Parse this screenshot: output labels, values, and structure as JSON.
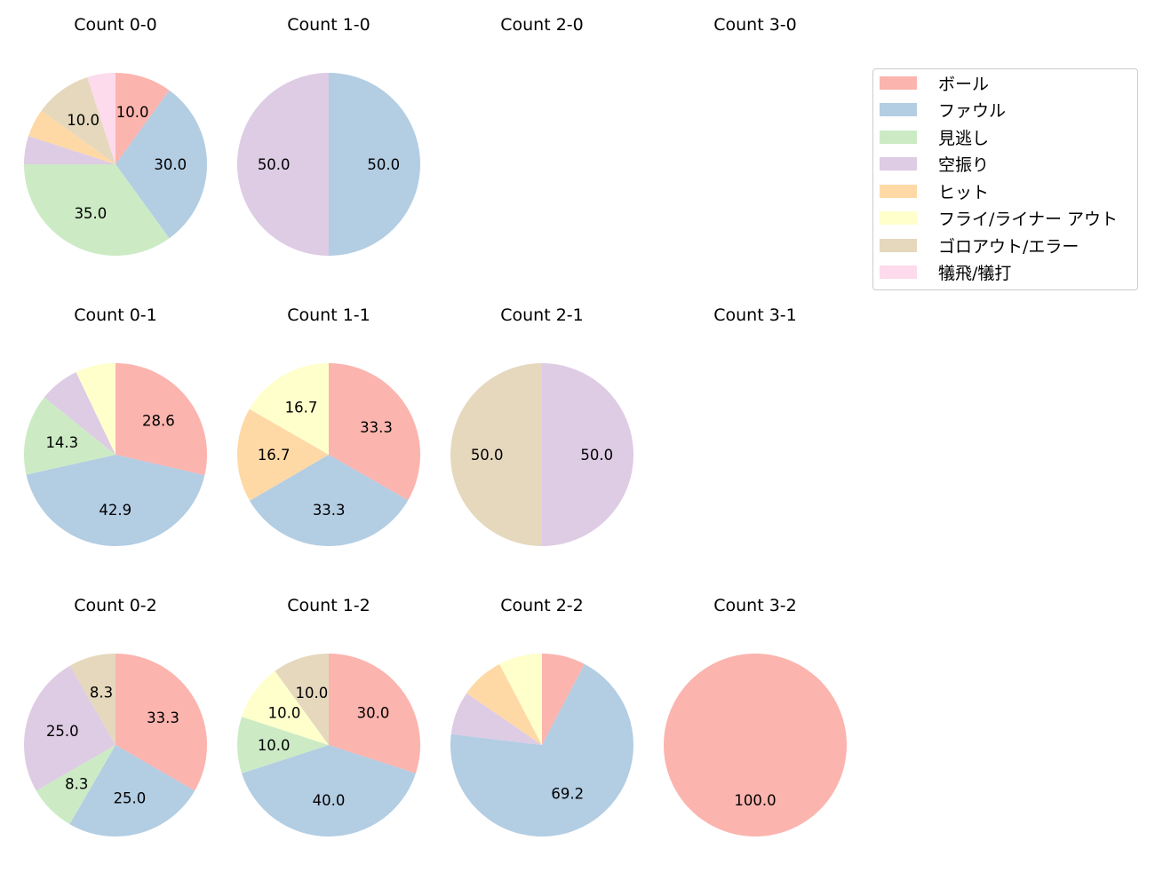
{
  "chart_data": {
    "type": "pie",
    "categories": [
      "ボール",
      "ファウル",
      "見逃し",
      "空振り",
      "ヒット",
      "フライ/ライナー アウト",
      "ゴロアウト/エラー",
      "犠飛/犠打"
    ],
    "colors": [
      "#fbb4ae",
      "#b3cde3",
      "#ccebc5",
      "#decbe4",
      "#fed9a6",
      "#ffffcc",
      "#e5d8bd",
      "#fddaec"
    ],
    "legend_position": "top-right",
    "charts": [
      {
        "title": "Count 0-0",
        "values": [
          10.0,
          30.0,
          35.0,
          5.0,
          5.0,
          0,
          10.0,
          5.0
        ]
      },
      {
        "title": "Count 1-0",
        "values": [
          0,
          50.0,
          0,
          50.0,
          0,
          0,
          0,
          0
        ]
      },
      {
        "title": "Count 2-0",
        "values": []
      },
      {
        "title": "Count 3-0",
        "values": []
      },
      {
        "title": "Count 0-1",
        "values": [
          28.6,
          42.9,
          14.3,
          7.1,
          0,
          7.1,
          0,
          0
        ]
      },
      {
        "title": "Count 1-1",
        "values": [
          33.3,
          33.3,
          0,
          0,
          16.7,
          16.7,
          0,
          0
        ]
      },
      {
        "title": "Count 2-1",
        "values": [
          0,
          0,
          0,
          50.0,
          0,
          0,
          50.0,
          0
        ]
      },
      {
        "title": "Count 3-1",
        "values": []
      },
      {
        "title": "Count 0-2",
        "values": [
          33.3,
          25.0,
          8.3,
          25.0,
          0,
          0,
          8.3,
          0
        ]
      },
      {
        "title": "Count 1-2",
        "values": [
          30.0,
          40.0,
          10.0,
          0,
          0,
          10.0,
          10.0,
          0
        ]
      },
      {
        "title": "Count 2-2",
        "values": [
          7.7,
          69.2,
          0,
          7.7,
          7.7,
          7.7,
          0,
          0
        ]
      },
      {
        "title": "Count 3-2",
        "values": [
          100.0,
          0,
          0,
          0,
          0,
          0,
          0,
          0
        ]
      }
    ]
  }
}
